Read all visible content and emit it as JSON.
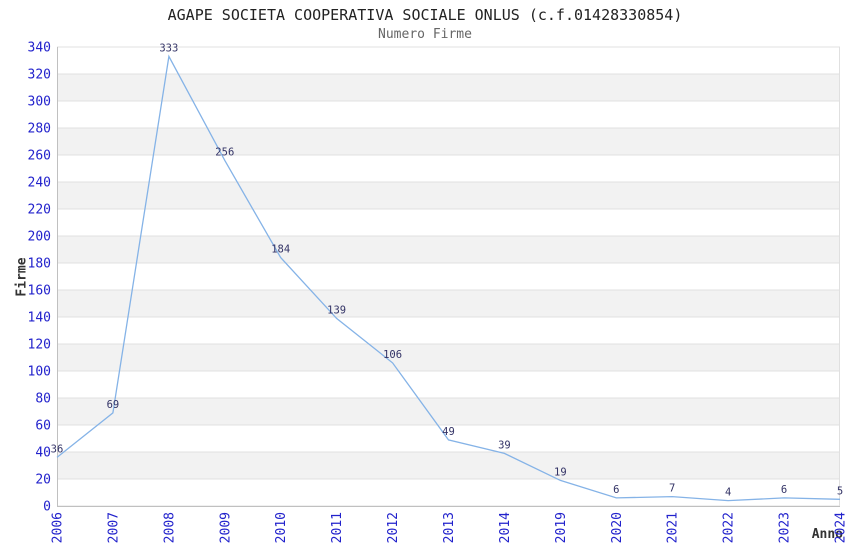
{
  "chart_data": {
    "type": "line",
    "title": "AGAPE SOCIETA COOPERATIVA SOCIALE ONLUS (c.f.01428330854)",
    "subtitle": "Numero Firme",
    "xlabel": "Anno",
    "ylabel": "Firme",
    "categories": [
      "2006",
      "2007",
      "2008",
      "2009",
      "2010",
      "2011",
      "2012",
      "2013",
      "2014",
      "2019",
      "2020",
      "2021",
      "2022",
      "2023",
      "2024"
    ],
    "values": [
      36,
      69,
      333,
      256,
      184,
      139,
      106,
      49,
      39,
      19,
      6,
      7,
      4,
      6,
      5
    ],
    "ylim": [
      0,
      340
    ],
    "ytick_step": 20,
    "grid": "horizontal-bands",
    "legend": "none",
    "colors": {
      "line": "#85b3e7",
      "tick_label": "#2222cc",
      "point_label": "#333366",
      "title": "#222222",
      "subtitle": "#666666",
      "axis_label": "#333333",
      "band": "#f2f2f2",
      "band_alt": "#ffffff",
      "gridline": "#e0e0e0",
      "border": "#c0c0c0",
      "background": "#ffffff"
    }
  }
}
